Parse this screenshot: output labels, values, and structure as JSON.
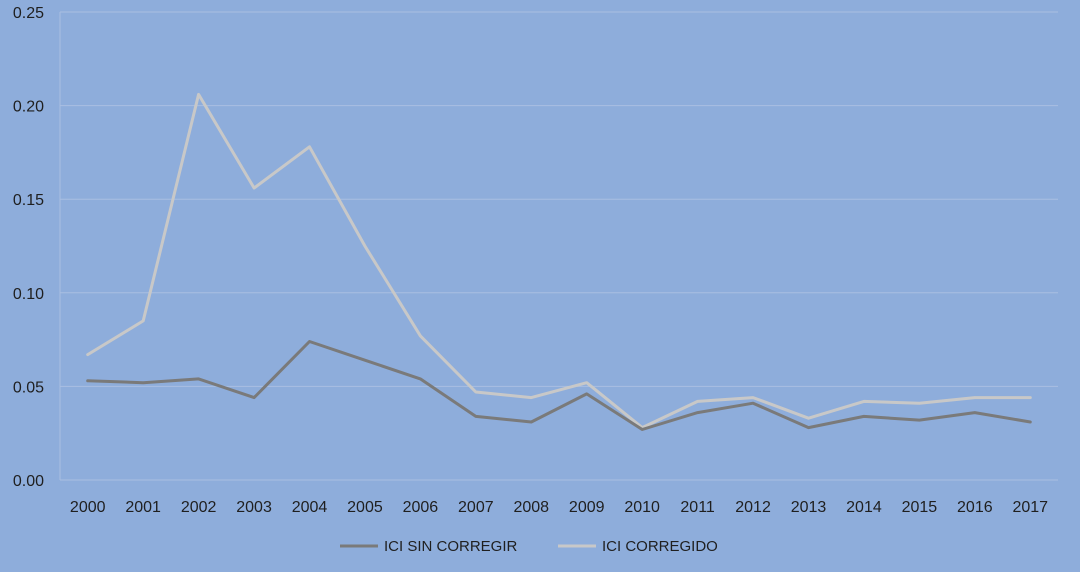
{
  "chart_data": {
    "type": "line",
    "title": "",
    "xlabel": "",
    "ylabel": "",
    "x": [
      "2000",
      "2001",
      "2002",
      "2003",
      "2004",
      "2005",
      "2006",
      "2007",
      "2008",
      "2009",
      "2010",
      "2011",
      "2012",
      "2013",
      "2014",
      "2015",
      "2016",
      "2017"
    ],
    "ylim": [
      0,
      0.25
    ],
    "yticks": [
      "0.00",
      "0.05",
      "0.10",
      "0.15",
      "0.20",
      "0.25"
    ],
    "grid": true,
    "legend": "bottom",
    "series": [
      {
        "name": "ICI SIN CORREGIR",
        "color": "#7a7a7a",
        "values": [
          0.053,
          0.052,
          0.054,
          0.044,
          0.074,
          0.064,
          0.054,
          0.034,
          0.031,
          0.046,
          0.027,
          0.036,
          0.041,
          0.028,
          0.034,
          0.032,
          0.036,
          0.031
        ]
      },
      {
        "name": "ICI CORREGIDO",
        "color": "#c8c8c8",
        "values": [
          0.067,
          0.085,
          0.206,
          0.156,
          0.178,
          0.125,
          0.077,
          0.047,
          0.044,
          0.052,
          0.028,
          0.042,
          0.044,
          0.033,
          0.042,
          0.041,
          0.044,
          0.044
        ]
      }
    ]
  }
}
